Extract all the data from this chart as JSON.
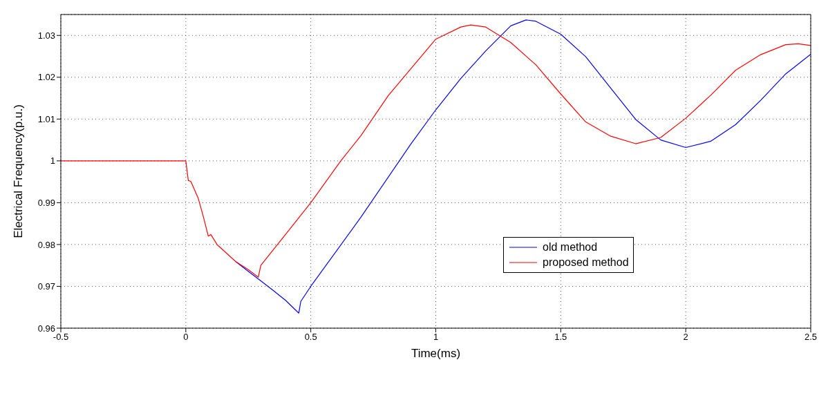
{
  "chart_data": {
    "type": "line",
    "xlabel": "Time(ms)",
    "ylabel": "Electrical Frequency(p.u.)",
    "xlim": [
      -0.5,
      2.5
    ],
    "xticks": [
      -0.5,
      0,
      0.5,
      1,
      1.5,
      2,
      2.5
    ],
    "ylim": [
      0.96,
      1.035
    ],
    "yticks": [
      0.96,
      0.97,
      0.98,
      0.99,
      1,
      1.01,
      1.02,
      1.03
    ],
    "grid": true,
    "legend": "right",
    "line_style": "solid",
    "marker": "none",
    "series": [
      {
        "name": "old method",
        "color": "#0000ff",
        "x": [
          0.2,
          0.25,
          0.3,
          0.35,
          0.4,
          0.452,
          0.46,
          0.5,
          0.7,
          0.9,
          1.0,
          1.1,
          1.2,
          1.3,
          1.361,
          1.4,
          1.5,
          1.6,
          1.7,
          1.8,
          1.9,
          2.0,
          2.1,
          2.2,
          2.3,
          2.4,
          2.5
        ],
        "values": [
          0.9759,
          0.9736,
          0.9713,
          0.969,
          0.9666,
          0.9636,
          0.9664,
          0.97,
          0.9865,
          1.004,
          1.0122,
          1.0197,
          1.0263,
          1.0323,
          1.0337,
          1.0334,
          1.0303,
          1.0249,
          1.0174,
          1.0099,
          1.005,
          1.0032,
          1.0047,
          1.0087,
          1.0145,
          1.0208,
          1.0255
        ]
      },
      {
        "name": "proposed method",
        "color": "#ff0000",
        "x": [
          -0.5,
          0,
          0.01,
          0.02,
          0.05,
          0.07,
          0.09,
          0.1,
          0.125,
          0.2,
          0.25,
          0.29,
          0.3,
          0.4,
          0.5,
          0.62,
          0.7,
          0.81,
          0.9,
          1.0,
          1.1,
          1.14,
          1.2,
          1.3,
          1.4,
          1.5,
          1.6,
          1.7,
          1.8,
          1.9,
          2.0,
          2.1,
          2.2,
          2.3,
          2.4,
          2.45,
          2.5
        ],
        "values": [
          1.0,
          1.0,
          0.9953,
          0.9951,
          0.991,
          0.9867,
          0.982,
          0.9824,
          0.98,
          0.9759,
          0.974,
          0.9722,
          0.975,
          0.9825,
          0.99,
          1.0,
          1.006,
          1.0156,
          1.022,
          1.0291,
          1.032,
          1.0325,
          1.032,
          1.0283,
          1.023,
          1.016,
          1.0093,
          1.0059,
          1.0041,
          1.0056,
          1.0102,
          1.0157,
          1.0217,
          1.0254,
          1.0278,
          1.028,
          1.0276
        ]
      }
    ]
  }
}
